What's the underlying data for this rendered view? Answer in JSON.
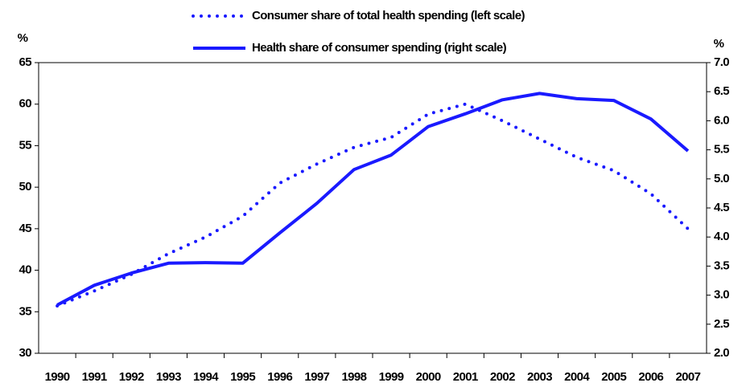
{
  "chart_data": {
    "type": "line",
    "categories": [
      "1990",
      "1991",
      "1992",
      "1993",
      "1994",
      "1995",
      "1996",
      "1997",
      "1998",
      "1999",
      "2000",
      "2001",
      "2002",
      "2003",
      "2004",
      "2005",
      "2006",
      "2007"
    ],
    "y_unit_label": "%",
    "y2_unit_label": "%",
    "ylim": [
      30,
      65
    ],
    "yticks": [
      30,
      35,
      40,
      45,
      50,
      55,
      60,
      65
    ],
    "y2lim": [
      2,
      7
    ],
    "y2ticks": [
      {
        "value": 2,
        "label": "2.0"
      },
      2.5,
      {
        "value": 3,
        "label": "3.0"
      },
      3.5,
      {
        "value": 4,
        "label": "4.0"
      },
      4.5,
      {
        "value": 5,
        "label": "5.0"
      },
      5.5,
      {
        "value": 6,
        "label": "6.0"
      },
      6.5,
      {
        "value": 7,
        "label": "7.0"
      }
    ],
    "series": [
      {
        "name": "Consumer share of total health spending (left scale)",
        "color": "#1a1aff",
        "style": "dotted",
        "values": [
          35.7,
          37.5,
          39.5,
          42,
          44,
          46.5,
          50.5,
          52.8,
          54.8,
          56,
          58.8,
          60,
          58,
          55.8,
          53.6,
          52,
          49.2,
          45
        ]
      },
      {
        "name": "Health share of consumer spending (right scale)",
        "color": "#1a1aff",
        "style": "solid",
        "axis": "y2",
        "values": [
          2.83,
          3.17,
          3.38,
          3.55,
          3.56,
          3.55,
          4.07,
          4.58,
          5.16,
          5.41,
          5.9,
          6.12,
          6.36,
          6.47,
          6.38,
          6.35,
          6.03,
          5.48
        ]
      }
    ]
  }
}
